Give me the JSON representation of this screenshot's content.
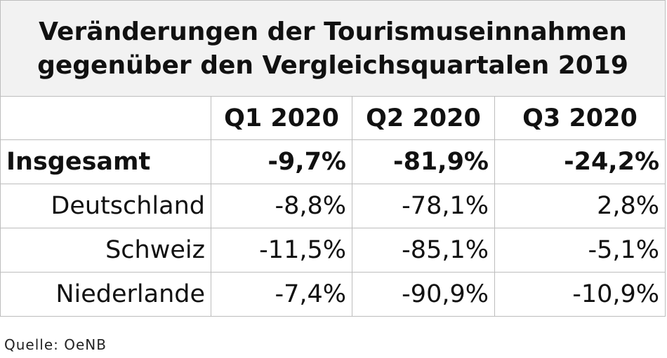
{
  "title_line1": "Veränderungen der Tourismuseinnahmen",
  "title_line2": "gegenüber den Vergleichsquartalen 2019",
  "columns": [
    "Q1 2020",
    "Q2 2020",
    "Q3 2020"
  ],
  "rows": [
    {
      "label": "Insgesamt",
      "values": [
        "-9,7%",
        "-81,9%",
        "-24,2%"
      ]
    },
    {
      "label": "Deutschland",
      "values": [
        "-8,8%",
        "-78,1%",
        "2,8%"
      ]
    },
    {
      "label": "Schweiz",
      "values": [
        "-11,5%",
        "-85,1%",
        "-5,1%"
      ]
    },
    {
      "label": "Niederlande",
      "values": [
        "-7,4%",
        "-90,9%",
        "-10,9%"
      ]
    }
  ],
  "source": "Quelle: OeNB"
}
